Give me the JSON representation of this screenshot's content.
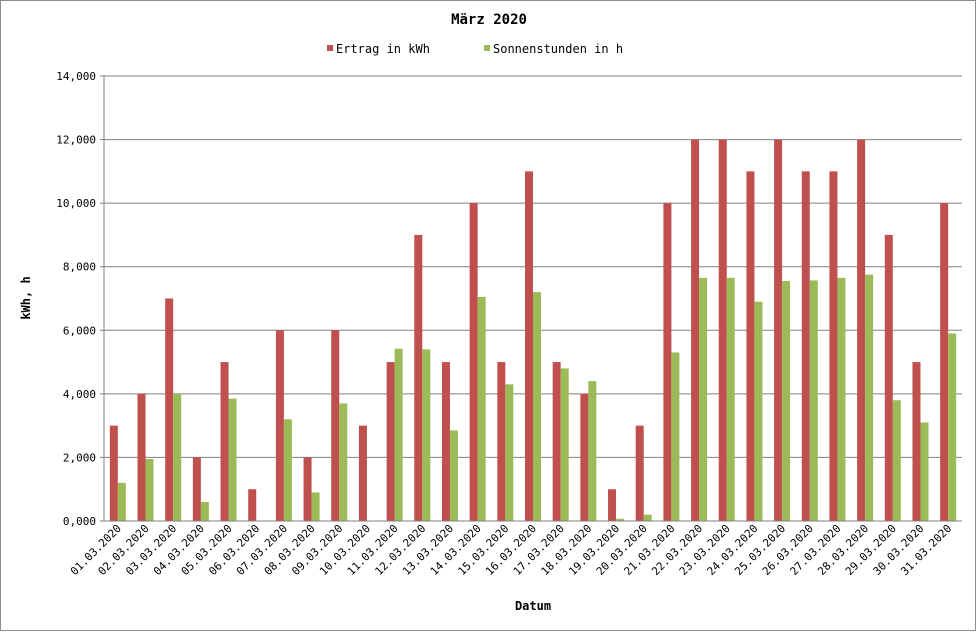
{
  "chart_data": {
    "type": "bar",
    "title": "März 2020",
    "xlabel": "Datum",
    "ylabel": "kWh, h",
    "ylim": [
      0,
      14
    ],
    "yticks": [
      "0,000",
      "2,000",
      "4,000",
      "6,000",
      "8,000",
      "10,000",
      "12,000",
      "14,000"
    ],
    "grid": "horizontal",
    "legend_position": "top",
    "categories": [
      "01.03.2020",
      "02.03.2020",
      "03.03.2020",
      "04.03.2020",
      "05.03.2020",
      "06.03.2020",
      "07.03.2020",
      "08.03.2020",
      "09.03.2020",
      "10.03.2020",
      "11.03.2020",
      "12.03.2020",
      "13.03.2020",
      "14.03.2020",
      "15.03.2020",
      "16.03.2020",
      "17.03.2020",
      "18.03.2020",
      "19.03.2020",
      "20.03.2020",
      "21.03.2020",
      "22.03.2020",
      "23.03.2020",
      "24.03.2020",
      "25.03.2020",
      "26.03.2020",
      "27.03.2020",
      "28.03.2020",
      "29.03.2020",
      "30.03.2020",
      "31.03.2020"
    ],
    "series": [
      {
        "name": "Ertrag in kWh",
        "color": "#c0504d",
        "values": [
          3,
          4,
          7,
          2,
          5,
          1,
          6,
          2,
          6,
          3,
          5,
          9,
          5,
          10,
          5,
          11,
          5,
          4,
          1,
          3,
          10,
          12,
          12,
          11,
          12,
          11,
          11,
          12,
          9,
          5,
          10
        ]
      },
      {
        "name": "Sonnenstunden in h",
        "color": "#9bbb59",
        "values": [
          1.2,
          1.95,
          4.0,
          0.6,
          3.85,
          0,
          3.2,
          0.9,
          3.7,
          0,
          5.42,
          5.4,
          2.85,
          7.05,
          4.3,
          7.2,
          4.8,
          4.4,
          0.07,
          0.2,
          5.3,
          7.65,
          7.65,
          6.9,
          7.55,
          7.57,
          7.65,
          7.75,
          3.8,
          3.1,
          5.9
        ]
      }
    ]
  }
}
